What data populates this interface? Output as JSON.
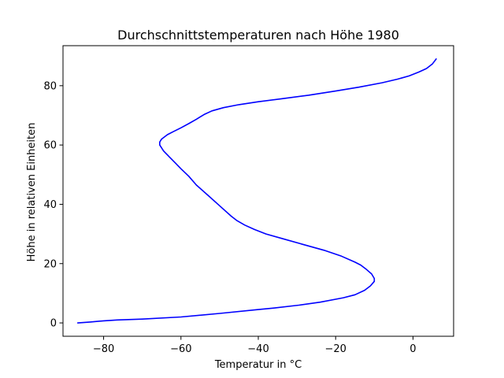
{
  "chart_data": {
    "type": "line",
    "title": "Durchschnittstemperaturen nach Höhe 1980",
    "xlabel": "Temperatur in °C",
    "ylabel": "Höhe in relativen Einheiten",
    "xlim": [
      -90.5,
      10.5
    ],
    "ylim": [
      -4.5,
      93.5
    ],
    "xticks": [
      -80,
      -60,
      -40,
      -20,
      0
    ],
    "xtick_labels": [
      "−80",
      "−60",
      "−40",
      "−20",
      "0"
    ],
    "yticks": [
      0,
      20,
      40,
      60,
      80
    ],
    "ytick_labels": [
      "0",
      "20",
      "40",
      "60",
      "80"
    ],
    "grid": false,
    "series": [
      {
        "color": "#0000ff",
        "points": [
          [
            -86.7,
            0
          ],
          [
            -83.5,
            0.3
          ],
          [
            -80,
            0.7
          ],
          [
            -76.5,
            1
          ],
          [
            -70,
            1.3
          ],
          [
            -60,
            2
          ],
          [
            -50,
            3.2
          ],
          [
            -40,
            4.5
          ],
          [
            -36,
            5
          ],
          [
            -29.5,
            6
          ],
          [
            -24,
            7
          ],
          [
            -18,
            8.5
          ],
          [
            -15,
            9.5
          ],
          [
            -12.5,
            11
          ],
          [
            -11,
            12.5
          ],
          [
            -10,
            14
          ],
          [
            -10,
            15
          ],
          [
            -10.7,
            16.5
          ],
          [
            -12,
            18
          ],
          [
            -13.5,
            19.5
          ],
          [
            -15,
            20.5
          ],
          [
            -18.5,
            22.5
          ],
          [
            -23,
            24.5
          ],
          [
            -28.5,
            26.5
          ],
          [
            -34,
            28.5
          ],
          [
            -38,
            30
          ],
          [
            -41,
            31.5
          ],
          [
            -43.5,
            33
          ],
          [
            -45.5,
            34.5
          ],
          [
            -47,
            36
          ],
          [
            -50,
            39.5
          ],
          [
            -53,
            43
          ],
          [
            -56,
            46.5
          ],
          [
            -58,
            49.5
          ],
          [
            -60,
            52
          ],
          [
            -61.5,
            54
          ],
          [
            -63,
            56
          ],
          [
            -64.5,
            58
          ],
          [
            -65.5,
            60
          ],
          [
            -65.5,
            61
          ],
          [
            -65,
            62
          ],
          [
            -63.5,
            63.5
          ],
          [
            -62,
            64.5
          ],
          [
            -60,
            65.8
          ],
          [
            -58,
            67.2
          ],
          [
            -56,
            68.7
          ],
          [
            -54,
            70.3
          ],
          [
            -52,
            71.5
          ],
          [
            -49,
            72.6
          ],
          [
            -45,
            73.6
          ],
          [
            -40,
            74.6
          ],
          [
            -34,
            75.6
          ],
          [
            -27,
            76.8
          ],
          [
            -20,
            78.2
          ],
          [
            -14,
            79.5
          ],
          [
            -8,
            81
          ],
          [
            -4,
            82.2
          ],
          [
            -1,
            83.3
          ],
          [
            1.5,
            84.6
          ],
          [
            3.5,
            85.8
          ],
          [
            5,
            87.3
          ],
          [
            6,
            89
          ]
        ]
      }
    ]
  }
}
